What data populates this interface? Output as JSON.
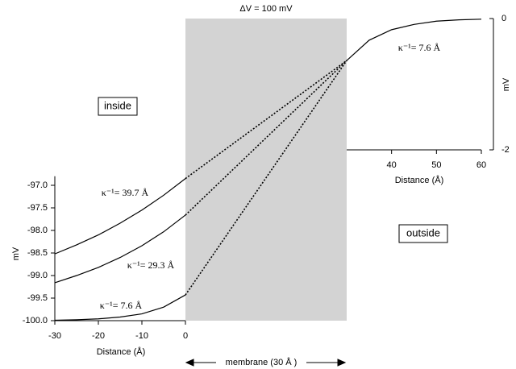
{
  "chart_data": [
    {
      "type": "line",
      "x_label": "Distance (Å)",
      "y_label": "mV",
      "x": [
        -30,
        -25,
        -20,
        -15,
        -10,
        -5,
        0
      ],
      "xlim": [
        -30,
        0
      ],
      "xticks": [
        -30,
        -20,
        -10,
        0
      ],
      "ylim": [
        -100,
        -96.8
      ],
      "yticks": [
        {
          "value": -97,
          "label": "-97.0"
        },
        -97.5,
        {
          "value": -98,
          "label": "-98.0"
        },
        -98.5,
        {
          "value": -99,
          "label": "-99.0"
        },
        -99.5,
        {
          "value": -100,
          "label": "-100.0"
        }
      ],
      "color": "#000000",
      "series": [
        {
          "name": "κ⁻¹= 39.7 Å",
          "color": "#000000",
          "values": [
            -98.52,
            -98.32,
            -98.1,
            -97.84,
            -97.55,
            -97.22,
            -96.85
          ]
        },
        {
          "name": "κ⁻¹= 29.3 Å",
          "color": "#000000",
          "values": [
            -99.16,
            -99.0,
            -98.82,
            -98.6,
            -98.34,
            -98.03,
            -97.66
          ]
        },
        {
          "name": "κ⁻¹= 7.6 Å",
          "color": "#000000",
          "values": [
            -99.99,
            -99.98,
            -99.96,
            -99.92,
            -99.85,
            -99.7,
            -99.43
          ]
        }
      ],
      "annotations": [
        "ΔV = 100 mV",
        "inside",
        "outside",
        "membrane (30 Å )"
      ]
    },
    {
      "type": "line",
      "x_label": "Distance (Å)",
      "y_label": "mV",
      "x": [
        30,
        35,
        40,
        45,
        50,
        55,
        60
      ],
      "xlim": [
        30,
        60
      ],
      "xticks": [
        40,
        50,
        60
      ],
      "ylim": [
        -2,
        0
      ],
      "yticks": [
        0,
        -2
      ],
      "series": [
        {
          "name": "κ⁻¹= 7.6 Å",
          "color": "#000000",
          "values": [
            -0.64,
            -0.33,
            -0.17,
            -0.09,
            -0.04,
            -0.02,
            -0.01
          ]
        }
      ]
    }
  ]
}
